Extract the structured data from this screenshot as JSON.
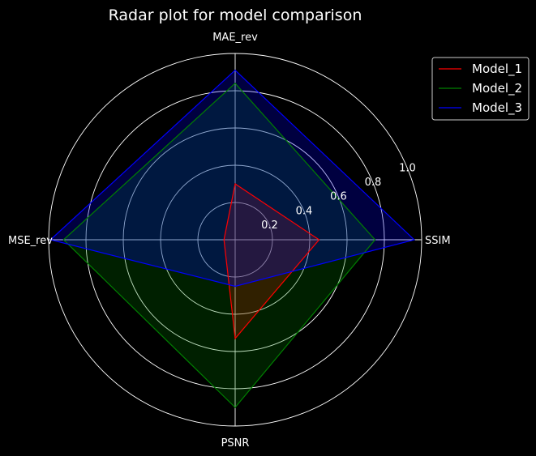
{
  "chart_data": {
    "type": "radar",
    "title": "Radar plot for model comparison",
    "categories": [
      "SSIM",
      "MAE_rev",
      "MSE_rev",
      "PSNR"
    ],
    "rlim": [
      0,
      1.0
    ],
    "rticks": [
      "0.2",
      "0.4",
      "0.6",
      "0.8",
      "1.0"
    ],
    "rtick_values": [
      0.2,
      0.4,
      0.6,
      0.8,
      1.0
    ],
    "grid": true,
    "legend_position": "top-right",
    "series": [
      {
        "name": "Model_1",
        "color": "#ff0000",
        "values": [
          0.45,
          0.3,
          0.06,
          0.53
        ]
      },
      {
        "name": "Model_2",
        "color": "#008000",
        "values": [
          0.75,
          0.84,
          0.92,
          0.9
        ]
      },
      {
        "name": "Model_3",
        "color": "#0000ff",
        "values": [
          0.96,
          0.91,
          0.99,
          0.25
        ]
      }
    ]
  }
}
